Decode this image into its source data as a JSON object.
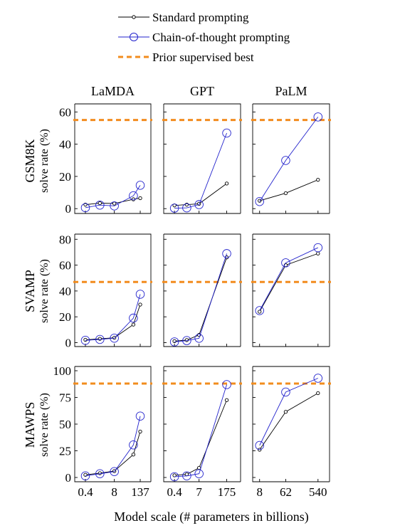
{
  "chart_data": {
    "type": "line",
    "legend": [
      {
        "name": "Standard prompting",
        "color": "#000000",
        "marker": "small-circle"
      },
      {
        "name": "Chain-of-thought prompting",
        "color": "#2222cc",
        "marker": "large-circle"
      },
      {
        "name": "Prior supervised best",
        "color": "#f28c1e",
        "marker": "dashed-line"
      }
    ],
    "legend_position": "top-center",
    "xlabel": "Model scale (# parameters in billions)",
    "columns": [
      {
        "title": "LaMDA",
        "ticks": [
          "0.4",
          "8",
          "137"
        ],
        "x": [
          "0.4",
          "2",
          "8",
          "68",
          "137"
        ]
      },
      {
        "title": "GPT",
        "ticks": [
          "0.4",
          "7",
          "175"
        ],
        "x": [
          "0.4",
          "1.3",
          "7",
          "175"
        ]
      },
      {
        "title": "PaLM",
        "ticks": [
          "8",
          "62",
          "540"
        ],
        "x": [
          "8",
          "62",
          "540"
        ]
      }
    ],
    "rows": [
      {
        "dataset": "GSM8K",
        "ylabel": "solve rate (%)",
        "ylim": [
          -3,
          65
        ],
        "yticks": [
          0,
          20,
          40,
          60
        ],
        "prior_best": 55,
        "panels": [
          {
            "standard": [
              2.5,
              3.4,
              3.2,
              5.8,
              6.5
            ],
            "cot": [
              0.6,
              2.2,
              1.7,
              8.0,
              14.5
            ]
          },
          {
            "standard": [
              2.0,
              2.5,
              3.0,
              15.6
            ],
            "cot": [
              0.3,
              0.5,
              2.5,
              46.9
            ]
          },
          {
            "standard": [
              4.9,
              9.6,
              17.9
            ],
            "cot": [
              4.4,
              29.9,
              56.9
            ]
          }
        ]
      },
      {
        "dataset": "SVAMP",
        "ylabel": "solve rate (%)",
        "ylim": [
          -3,
          84
        ],
        "yticks": [
          0,
          20,
          40,
          60,
          80
        ],
        "prior_best": 47,
        "panels": [
          {
            "standard": [
              2.2,
              3.0,
              3.8,
              14.0,
              29.5
            ],
            "cot": [
              1.8,
              2.5,
              3.5,
              19.0,
              37.5
            ]
          },
          {
            "standard": [
              1.2,
              2.0,
              6.0,
              66.0
            ],
            "cot": [
              0.6,
              1.6,
              3.4,
              68.9
            ]
          },
          {
            "standard": [
              24.0,
              60.0,
              69.0
            ],
            "cot": [
              24.8,
              61.8,
              73.5
            ]
          }
        ]
      },
      {
        "dataset": "MAWPS",
        "ylabel": "solve rate (%)",
        "ylim": [
          -4,
          104
        ],
        "yticks": [
          0,
          25,
          50,
          75,
          100
        ],
        "prior_best": 88,
        "panels": [
          {
            "standard": [
              2.5,
              4.0,
              6.0,
              21.5,
              43.0
            ],
            "cot": [
              1.5,
              3.5,
              5.5,
              30.5,
              57.5
            ]
          },
          {
            "standard": [
              2.0,
              3.0,
              9.0,
              72.5
            ],
            "cot": [
              0.7,
              1.5,
              3.5,
              87.0
            ]
          },
          {
            "standard": [
              26.0,
              61.5,
              79.0
            ],
            "cot": [
              30.0,
              80.0,
              93.0
            ]
          }
        ]
      }
    ]
  }
}
